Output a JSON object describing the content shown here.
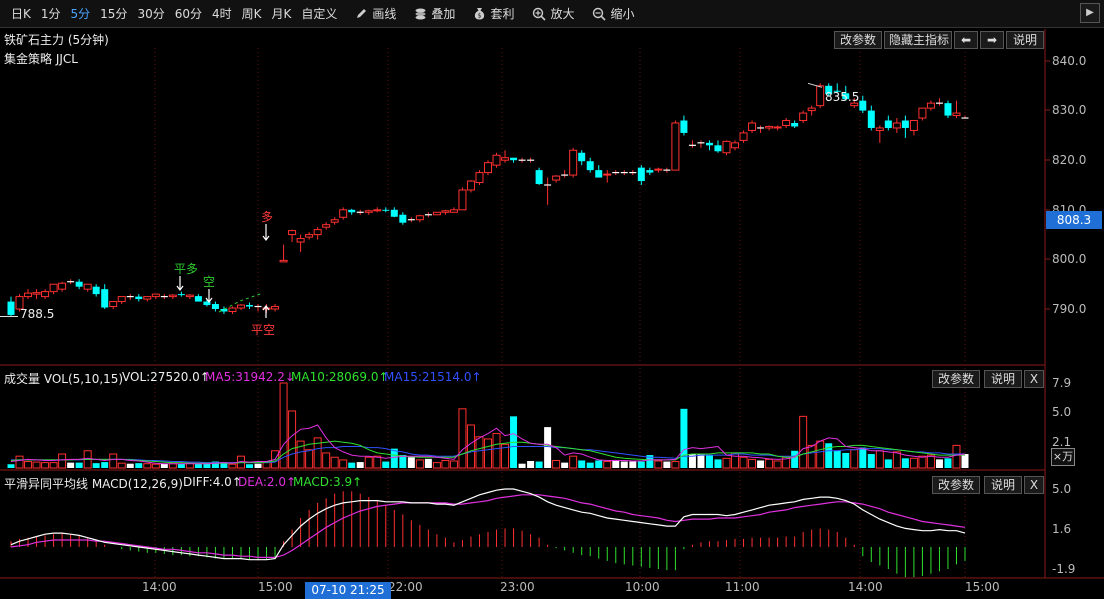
{
  "toolbar": {
    "periods": [
      "日K",
      "1分",
      "5分",
      "15分",
      "30分",
      "60分",
      "4时",
      "周K",
      "月K",
      "自定义"
    ],
    "active_period": "5分",
    "tools": [
      {
        "icon": "pencil-icon",
        "label": "画线"
      },
      {
        "icon": "layers-icon",
        "label": "叠加"
      },
      {
        "icon": "money-bag-icon",
        "label": "套利"
      },
      {
        "icon": "zoom-in-icon",
        "label": "放大"
      },
      {
        "icon": "zoom-out-icon",
        "label": "缩小"
      }
    ]
  },
  "main": {
    "title": "铁矿石主力 (5分钟)",
    "strategy": "集金策略 JJCL",
    "buttons": {
      "params": "改参数",
      "hide": "隐藏主指标",
      "prev": "⬅",
      "next": "➡",
      "help": "说明"
    },
    "price_axis": [
      "840.0",
      "830.0",
      "820.0",
      "810.0",
      "800.0",
      "790.0"
    ],
    "current_price": "808.3",
    "low_label": "788.5",
    "high_label": "835.5",
    "signals": {
      "long": "多",
      "close_short": "平空",
      "close_long": "平多",
      "short": "空"
    }
  },
  "volume": {
    "title": "成交量 VOL(5,10,15)",
    "vol": "VOL:27520.0↑",
    "ma5": "MA5:31942.2↓",
    "ma10": "MA10:28069.0↑",
    "ma15": "MA15:21514.0↑",
    "buttons": {
      "params": "改参数",
      "help": "说明",
      "close": "X"
    },
    "axis": [
      "7.9",
      "5.0",
      "2.1"
    ],
    "unit": "×万"
  },
  "macd": {
    "title": "平滑异同平均线 MACD(12,26,9)",
    "diff": "DIFF:4.0↑",
    "dea": "DEA:2.0↑",
    "macd": "MACD:3.9↑",
    "buttons": {
      "params": "改参数",
      "help": "说明",
      "close": "X"
    },
    "axis": [
      "5.0",
      "1.6",
      "-1.9"
    ]
  },
  "time_axis": [
    "14:00",
    "15:00",
    "22:00",
    "23:00",
    "10:00",
    "11:00",
    "14:00",
    "15:00"
  ],
  "cursor_time": "07-10 21:25",
  "chart_data": {
    "type": "candlestick",
    "title": "铁矿石主力 (5分钟)",
    "ylim": [
      786,
      842
    ],
    "candles": [
      [
        791.5,
        792.5,
        788.5,
        788.8
      ],
      [
        790,
        793,
        789.5,
        792.5
      ],
      [
        792.5,
        794,
        792,
        793.2
      ],
      [
        793,
        794,
        792,
        793.3
      ],
      [
        792.5,
        794,
        792,
        793.5
      ],
      [
        793.5,
        795,
        793,
        795
      ],
      [
        794,
        795.5,
        793.5,
        795.2
      ],
      [
        795.5,
        796,
        795,
        795.5
      ],
      [
        795.5,
        796,
        794,
        794.5
      ],
      [
        794,
        795,
        793.5,
        795
      ],
      [
        794.5,
        795,
        792.5,
        793
      ],
      [
        794,
        795,
        790,
        790.3
      ],
      [
        790.5,
        791.5,
        790,
        791.5
      ],
      [
        791.5,
        792.5,
        791,
        792.5
      ],
      [
        792.5,
        793,
        791.8,
        792.5
      ],
      [
        792.5,
        793,
        791.5,
        792
      ],
      [
        792,
        792.5,
        791.5,
        792.5
      ],
      [
        792.5,
        793,
        792,
        793
      ],
      [
        792.5,
        793,
        792,
        792.5
      ],
      [
        792.5,
        793,
        792,
        792.8
      ],
      [
        793,
        793.5,
        792.5,
        792.8
      ],
      [
        792.5,
        793,
        792,
        792.8
      ],
      [
        792.6,
        793,
        791.5,
        791.5
      ],
      [
        791.5,
        792,
        790.5,
        790.8
      ],
      [
        791,
        791.5,
        789.5,
        790
      ],
      [
        790,
        790.5,
        789,
        789.5
      ],
      [
        789.5,
        790.5,
        789,
        790.2
      ],
      [
        790.2,
        791,
        789.8,
        790.8
      ],
      [
        790.8,
        791.3,
        790,
        790.5
      ],
      [
        790.5,
        791,
        789.5,
        790.5
      ],
      [
        790,
        791,
        789.2,
        790.2
      ],
      [
        790,
        791,
        789.5,
        790.5
      ],
      [
        799.5,
        803,
        799.5,
        799.8
      ],
      [
        805,
        806,
        803.5,
        805.8
      ],
      [
        803.5,
        805,
        801.5,
        804.2
      ],
      [
        804.5,
        805.5,
        804,
        805
      ],
      [
        805,
        806.5,
        804,
        806
      ],
      [
        806.5,
        807.5,
        806,
        807
      ],
      [
        807.5,
        808.5,
        807,
        808
      ],
      [
        808.5,
        810.5,
        808,
        810
      ],
      [
        810,
        810.2,
        809,
        809.5
      ],
      [
        809.5,
        810,
        809,
        809.5
      ],
      [
        809.5,
        810,
        809,
        809.8
      ],
      [
        809.8,
        810.5,
        809.5,
        810
      ],
      [
        810,
        810.5,
        809.5,
        809.8
      ],
      [
        810,
        810.5,
        808.5,
        808.6
      ],
      [
        809,
        809.5,
        807,
        807.4
      ],
      [
        808,
        808.5,
        807.5,
        808
      ],
      [
        808,
        809,
        807.5,
        808.8
      ],
      [
        809,
        809.5,
        808.5,
        809
      ],
      [
        809,
        809.5,
        809,
        809.5
      ],
      [
        809.5,
        810,
        809,
        809.8
      ],
      [
        809.5,
        810.5,
        809.5,
        810
      ],
      [
        810,
        814.5,
        810,
        814
      ],
      [
        814,
        816,
        813.5,
        815.8
      ],
      [
        815.5,
        818,
        815,
        817.5
      ],
      [
        817.5,
        820,
        817,
        819.5
      ],
      [
        819,
        821.5,
        818.5,
        821
      ],
      [
        820,
        822,
        819.5,
        820.5
      ],
      [
        820.5,
        820.5,
        819.5,
        820
      ],
      [
        820,
        820.5,
        819.5,
        820
      ],
      [
        820,
        820.5,
        819.5,
        820
      ],
      [
        818,
        818.5,
        815,
        815.2
      ],
      [
        815,
        816.5,
        811,
        815
      ],
      [
        816,
        817,
        815.5,
        816.8
      ],
      [
        817,
        818,
        816.5,
        817
      ],
      [
        817,
        822.5,
        816.5,
        822
      ],
      [
        821.5,
        822,
        819,
        819.8
      ],
      [
        819.8,
        820.5,
        817.5,
        818
      ],
      [
        818,
        819,
        816.5,
        816.5
      ],
      [
        817,
        818,
        815.5,
        817.2
      ],
      [
        817.5,
        818,
        817,
        817.5
      ],
      [
        817.5,
        818,
        817,
        817.5
      ],
      [
        817.5,
        818,
        817,
        817.5
      ],
      [
        818.5,
        819,
        815,
        815.8
      ],
      [
        818,
        818.5,
        817,
        817.5
      ],
      [
        818,
        818.5,
        817.5,
        818.2
      ],
      [
        818,
        818.5,
        817.5,
        818
      ],
      [
        818,
        828,
        818,
        827.5
      ],
      [
        828,
        829,
        825,
        825.5
      ],
      [
        823,
        824,
        822.5,
        823
      ],
      [
        823.5,
        824,
        822.5,
        823.5
      ],
      [
        823.5,
        824,
        822,
        823
      ],
      [
        823,
        824,
        821.5,
        821.8
      ],
      [
        821.5,
        824,
        821,
        823.8
      ],
      [
        822.5,
        824,
        822,
        823.5
      ],
      [
        824,
        826,
        823.5,
        825.5
      ],
      [
        826,
        828,
        825.5,
        827.5
      ],
      [
        826.5,
        827,
        825.5,
        826.5
      ],
      [
        826.5,
        827,
        826,
        826.8
      ],
      [
        826.5,
        827,
        826,
        826.7
      ],
      [
        827,
        828.5,
        826.5,
        828
      ],
      [
        827.5,
        828,
        826.5,
        826.8
      ],
      [
        828,
        830,
        827.5,
        829.5
      ],
      [
        830,
        831,
        829,
        830.5
      ],
      [
        831,
        835.5,
        830.5,
        835
      ],
      [
        835,
        835.5,
        833,
        833.3
      ],
      [
        834,
        835.5,
        833.5,
        833.8
      ],
      [
        833.5,
        835,
        832,
        832.3
      ],
      [
        831,
        832.5,
        830.5,
        831.5
      ],
      [
        832,
        833,
        829.5,
        830
      ],
      [
        830,
        831,
        826,
        826.5
      ],
      [
        826,
        827,
        823.5,
        826.5
      ],
      [
        828,
        829,
        826,
        826.5
      ],
      [
        826.5,
        828.5,
        825.5,
        827.5
      ],
      [
        828,
        829,
        824.5,
        826.5
      ],
      [
        826,
        828,
        825,
        828
      ],
      [
        828.5,
        830.5,
        828,
        830.5
      ],
      [
        830.5,
        832,
        830,
        831.5
      ],
      [
        831.5,
        832.5,
        831,
        831.5
      ],
      [
        831.5,
        832,
        828.5,
        829
      ],
      [
        829,
        832,
        828.5,
        829.5
      ],
      [
        828.5,
        829,
        828.5,
        828.5
      ]
    ],
    "volume": [
      0.35,
      1.1,
      0.6,
      0.55,
      0.5,
      0.5,
      1.3,
      0.5,
      0.5,
      1.6,
      0.45,
      0.55,
      1.3,
      0.45,
      0.4,
      0.45,
      0.4,
      0.35,
      0.4,
      0.4,
      0.4,
      0.45,
      0.4,
      0.4,
      0.6,
      0.55,
      0.35,
      1.1,
      0.35,
      0.4,
      0.5,
      1.6,
      7.9,
      5.3,
      2.5,
      1.7,
      2.8,
      1.4,
      1.0,
      0.75,
      0.5,
      0.55,
      1.0,
      1.1,
      0.6,
      1.8,
      1.2,
      1.0,
      0.75,
      0.85,
      0.5,
      0.7,
      0.65,
      5.5,
      4.0,
      2.9,
      2.7,
      3.2,
      2.2,
      4.8,
      0.4,
      0.65,
      0.6,
      3.8,
      0.7,
      0.5,
      1.1,
      0.7,
      0.5,
      0.7,
      0.6,
      0.75,
      0.6,
      0.6,
      0.6,
      1.2,
      0.65,
      0.6,
      0.6,
      5.5,
      1.3,
      1.3,
      1.2,
      0.8,
      0.9,
      1.4,
      1.0,
      0.8,
      0.7,
      0.8,
      0.65,
      1.0,
      1.6,
      4.8,
      2.1,
      2.5,
      2.3,
      1.6,
      1.4,
      1.7,
      1.9,
      1.3,
      1.6,
      0.8,
      1.5,
      0.9,
      0.9,
      1.1,
      1.2,
      0.8,
      0.9,
      2.1,
      1.3
    ],
    "ma5": [
      0.6,
      0.7,
      0.8,
      0.75,
      0.7,
      0.7,
      0.75,
      0.8,
      0.8,
      0.9,
      0.8,
      0.7,
      0.8,
      0.8,
      0.7,
      0.65,
      0.55,
      0.45,
      0.4,
      0.4,
      0.4,
      0.4,
      0.4,
      0.4,
      0.45,
      0.5,
      0.45,
      0.6,
      0.55,
      0.6,
      0.6,
      0.8,
      2.2,
      3.0,
      3.6,
      3.7,
      4.0,
      2.8,
      1.9,
      1.5,
      1.2,
      1.1,
      1.1,
      1.0,
      0.9,
      1.0,
      1.1,
      1.1,
      1.1,
      1.1,
      1.0,
      0.9,
      0.8,
      1.7,
      2.3,
      2.8,
      3.2,
      3.7,
      3.0,
      3.2,
      2.7,
      2.3,
      2.2,
      2.2,
      1.9,
      1.2,
      1.4,
      1.3,
      1.0,
      0.75,
      0.7,
      0.7,
      0.7,
      0.65,
      0.65,
      0.75,
      0.75,
      0.75,
      0.8,
      1.7,
      1.9,
      1.8,
      1.9,
      2.0,
      1.2,
      1.1,
      1.1,
      1.0,
      0.95,
      0.85,
      0.8,
      0.85,
      1.0,
      1.8,
      2.0,
      2.5,
      2.8,
      2.7,
      2.0,
      1.9,
      1.8,
      1.6,
      1.6,
      1.5,
      1.4,
      1.2,
      1.1,
      1.0,
      1.1,
      1.0,
      1.0,
      1.2,
      1.3
    ],
    "ma10": [
      0.7,
      0.75,
      0.75,
      0.75,
      0.75,
      0.75,
      0.75,
      0.75,
      0.8,
      0.8,
      0.8,
      0.8,
      0.8,
      0.8,
      0.75,
      0.7,
      0.65,
      0.6,
      0.55,
      0.5,
      0.5,
      0.45,
      0.45,
      0.45,
      0.45,
      0.45,
      0.45,
      0.5,
      0.5,
      0.5,
      0.55,
      0.65,
      1.3,
      1.8,
      2.0,
      2.2,
      2.3,
      2.4,
      2.5,
      2.4,
      2.3,
      2.1,
      1.7,
      1.4,
      1.3,
      1.2,
      1.1,
      1.05,
      1.0,
      1.0,
      1.0,
      1.0,
      1.0,
      1.3,
      1.6,
      1.8,
      2.0,
      2.2,
      2.3,
      2.4,
      2.4,
      2.3,
      2.2,
      2.1,
      2.0,
      1.9,
      1.8,
      1.7,
      1.6,
      1.4,
      1.2,
      1.0,
      0.9,
      0.85,
      0.8,
      0.75,
      0.75,
      0.75,
      0.75,
      1.2,
      1.3,
      1.3,
      1.3,
      1.4,
      1.4,
      1.4,
      1.4,
      1.4,
      1.3,
      1.3,
      1.1,
      1.0,
      1.0,
      1.3,
      1.5,
      1.7,
      1.9,
      2.0,
      2.0,
      2.1,
      2.1,
      2.0,
      1.9,
      1.8,
      1.7,
      1.6,
      1.5,
      1.4,
      1.3,
      1.2,
      1.2,
      1.2,
      1.2
    ],
    "ma15": [
      0.75,
      0.75,
      0.75,
      0.75,
      0.75,
      0.75,
      0.75,
      0.75,
      0.75,
      0.8,
      0.8,
      0.8,
      0.8,
      0.8,
      0.8,
      0.75,
      0.7,
      0.7,
      0.65,
      0.6,
      0.6,
      0.55,
      0.55,
      0.5,
      0.5,
      0.5,
      0.5,
      0.5,
      0.5,
      0.5,
      0.5,
      0.55,
      1.0,
      1.3,
      1.5,
      1.6,
      1.8,
      1.9,
      1.9,
      2.0,
      2.0,
      2.0,
      1.9,
      1.9,
      1.8,
      1.6,
      1.5,
      1.3,
      1.2,
      1.2,
      1.1,
      1.1,
      1.1,
      1.3,
      1.5,
      1.6,
      1.7,
      1.8,
      1.9,
      2.0,
      2.0,
      2.0,
      2.0,
      2.0,
      1.9,
      1.9,
      1.8,
      1.7,
      1.7,
      1.6,
      1.5,
      1.4,
      1.3,
      1.2,
      1.1,
      1.0,
      1.0,
      0.95,
      0.9,
      1.1,
      1.1,
      1.2,
      1.2,
      1.2,
      1.2,
      1.3,
      1.3,
      1.2,
      1.2,
      1.2,
      1.1,
      1.1,
      1.1,
      1.3,
      1.4,
      1.5,
      1.6,
      1.6,
      1.7,
      1.7,
      1.8,
      1.8,
      1.8,
      1.7,
      1.7,
      1.6,
      1.5,
      1.5,
      1.4,
      1.4,
      1.3,
      1.3,
      1.3
    ],
    "macd_hist": [
      0.5,
      0.7,
      0.8,
      0.9,
      1.0,
      1.1,
      1.2,
      1.1,
      1.0,
      0.8,
      0.5,
      0.2,
      0.0,
      -0.2,
      -0.3,
      -0.4,
      -0.5,
      -0.5,
      -0.6,
      -0.7,
      -0.7,
      -0.8,
      -0.8,
      -0.9,
      -1.0,
      -1.0,
      -1.0,
      -1.0,
      -1.1,
      -1.1,
      -1.1,
      -1.0,
      0.5,
      1.5,
      2.5,
      3.2,
      3.8,
      4.2,
      4.6,
      4.8,
      4.8,
      4.6,
      4.3,
      4.0,
      3.6,
      3.2,
      2.8,
      2.3,
      1.9,
      1.5,
      1.1,
      0.8,
      0.4,
      0.6,
      0.9,
      1.1,
      1.3,
      1.5,
      1.6,
      1.6,
      1.4,
      1.1,
      0.8,
      0.2,
      -0.1,
      -0.3,
      -0.5,
      -0.7,
      -0.8,
      -1.0,
      -1.2,
      -1.4,
      -1.5,
      -1.6,
      -1.7,
      -1.8,
      -1.9,
      -2.0,
      -2.0,
      -0.2,
      0.2,
      0.4,
      0.5,
      0.5,
      0.6,
      0.7,
      0.7,
      0.8,
      0.8,
      0.8,
      0.8,
      0.9,
      0.9,
      1.3,
      1.5,
      1.6,
      1.5,
      1.3,
      0.8,
      0.2,
      -0.8,
      -1.3,
      -1.6,
      -1.9,
      -2.3,
      -2.6,
      -2.6,
      -2.5,
      -2.3,
      -2.1,
      -1.9,
      -1.5,
      -1.2
    ],
    "diff": [
      0.2,
      0.5,
      0.7,
      0.9,
      1.1,
      1.2,
      1.2,
      1.1,
      1.0,
      0.8,
      0.6,
      0.4,
      0.3,
      0.2,
      0.1,
      0.0,
      -0.1,
      -0.2,
      -0.3,
      -0.4,
      -0.5,
      -0.6,
      -0.7,
      -0.8,
      -0.9,
      -1.0,
      -1.0,
      -1.0,
      -1.1,
      -1.1,
      -1.1,
      -1.0,
      0.2,
      1.0,
      1.8,
      2.4,
      2.9,
      3.3,
      3.6,
      3.8,
      3.9,
      4.0,
      4.0,
      4.0,
      3.9,
      3.9,
      3.9,
      3.8,
      3.8,
      3.8,
      3.7,
      3.7,
      3.6,
      3.9,
      4.2,
      4.5,
      4.7,
      4.9,
      5.0,
      5.0,
      4.8,
      4.6,
      4.3,
      3.9,
      3.6,
      3.4,
      3.2,
      3.0,
      2.9,
      2.7,
      2.5,
      2.4,
      2.3,
      2.2,
      2.1,
      2.0,
      1.9,
      1.8,
      1.8,
      2.6,
      2.8,
      2.8,
      2.8,
      2.8,
      2.7,
      2.8,
      3.0,
      3.2,
      3.4,
      3.6,
      3.7,
      3.8,
      3.9,
      4.1,
      4.2,
      4.3,
      4.3,
      4.2,
      4.0,
      3.7,
      3.2,
      2.8,
      2.4,
      2.1,
      1.8,
      1.6,
      1.5,
      1.4,
      1.4,
      1.5,
      1.4,
      1.4,
      1.2
    ],
    "dea": [
      0.0,
      0.1,
      0.2,
      0.4,
      0.5,
      0.6,
      0.6,
      0.6,
      0.6,
      0.6,
      0.5,
      0.5,
      0.4,
      0.3,
      0.2,
      0.1,
      0.0,
      -0.1,
      -0.2,
      -0.2,
      -0.3,
      -0.4,
      -0.5,
      -0.5,
      -0.6,
      -0.7,
      -0.7,
      -0.8,
      -0.8,
      -0.9,
      -0.9,
      -0.9,
      -0.7,
      -0.3,
      0.2,
      0.7,
      1.2,
      1.7,
      2.1,
      2.5,
      2.8,
      3.1,
      3.3,
      3.5,
      3.6,
      3.7,
      3.8,
      3.8,
      3.8,
      3.8,
      3.8,
      3.8,
      3.7,
      3.7,
      3.8,
      3.9,
      4.0,
      4.2,
      4.3,
      4.4,
      4.5,
      4.5,
      4.5,
      4.4,
      4.3,
      4.2,
      4.0,
      3.8,
      3.7,
      3.5,
      3.3,
      3.1,
      3.0,
      2.8,
      2.7,
      2.6,
      2.5,
      2.3,
      2.2,
      2.3,
      2.4,
      2.4,
      2.4,
      2.5,
      2.5,
      2.5,
      2.6,
      2.7,
      2.8,
      3.0,
      3.1,
      3.2,
      3.4,
      3.5,
      3.6,
      3.7,
      3.8,
      3.9,
      3.9,
      3.8,
      3.7,
      3.5,
      3.3,
      3.0,
      2.8,
      2.6,
      2.4,
      2.2,
      2.1,
      2.0,
      1.9,
      1.8,
      1.7
    ]
  }
}
